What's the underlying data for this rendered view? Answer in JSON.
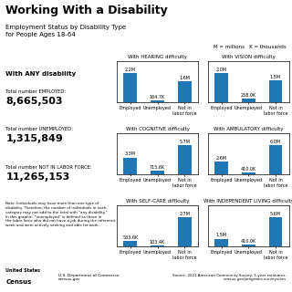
{
  "title": "Working With a Disability",
  "subtitle": "Employment Status by Disability Type\nfor People Ages 18-64",
  "annotations": [
    "With ANY disability",
    "Total number EMPLOYED:",
    "8,665,503",
    "Total number UNEMPLOYED:",
    "1,315,849",
    "Total number NOT IN LABOR FORCE:",
    "11,265,153",
    "Note: Individuals may have more than one type of\ndisability. Therefore, the number of individuals in each\ncategory may not add to the total with \"any disability.\"\nIn this graphic, \"unemployed\" is defined as those in\nthe labor force who did not have a job during the reference\nweek and were actively seeking and able for work.",
    "M = millions   K = thousands",
    "United States",
    "Census",
    "U.S. Department of Commerce\ncensus.gov",
    "Source: 2021 American Community Survey, 1-year estimates.\ncensus.gov/programs-surveys/acs"
  ],
  "chart_data": [
    {
      "type": "bar",
      "title": "With HEARING difficulty",
      "categories": [
        "Employed",
        "Unemployed",
        "Not in\nlabor force"
      ],
      "values": [
        2.2,
        0.1647,
        1.6
      ],
      "value_labels": [
        "2.2M",
        "164.7K",
        "1.6M"
      ],
      "ylim": [
        0,
        3.08
      ],
      "data_labels": true,
      "tick_labels": "x",
      "grid": false
    },
    {
      "type": "bar",
      "title": "With VISION difficulty",
      "categories": [
        "Employed",
        "Unemployed",
        "Not in\nlabor force"
      ],
      "values": [
        2.0,
        0.258,
        1.5
      ],
      "value_labels": [
        "2.0M",
        "258.0K",
        "1.5M"
      ],
      "ylim": [
        0,
        2.8
      ],
      "data_labels": true,
      "tick_labels": "x",
      "grid": false
    },
    {
      "type": "bar",
      "title": "With COGNITIVE difficulty",
      "categories": [
        "Employed",
        "Unemployed",
        "Not in\nlabor force"
      ],
      "values": [
        3.3,
        0.7156,
        5.7
      ],
      "value_labels": [
        "3.3M",
        "715.6K",
        "5.7M"
      ],
      "ylim": [
        0,
        7.98
      ],
      "data_labels": true,
      "tick_labels": "x",
      "grid": false
    },
    {
      "type": "bar",
      "title": "With AMBULATORY difficulty",
      "categories": [
        "Employed",
        "Unemployed",
        "Not in\nlabor force"
      ],
      "values": [
        2.6,
        0.41,
        6.0
      ],
      "value_labels": [
        "2.6M",
        "410.0K",
        "6.0M"
      ],
      "ylim": [
        0,
        8.4
      ],
      "data_labels": true,
      "tick_labels": "x",
      "grid": false
    },
    {
      "type": "bar",
      "title": "With SELF-CARE difficulty",
      "categories": [
        "Employed",
        "Unemployed",
        "Not in\nlabor force"
      ],
      "values": [
        0.5336,
        0.1034,
        2.7
      ],
      "value_labels": [
        "533.6K",
        "103.4K",
        "2.7M"
      ],
      "ylim": [
        0,
        3.78
      ],
      "data_labels": true,
      "tick_labels": "x",
      "grid": false
    },
    {
      "type": "bar",
      "title": "With INDEPENDENT LIVING difficulty",
      "categories": [
        "Employed",
        "Unemployed",
        "Not in\nlabor force"
      ],
      "values": [
        1.5,
        0.41,
        5.6
      ],
      "value_labels": [
        "1.5M",
        "410.0K",
        "5.6M"
      ],
      "ylim": [
        0,
        7.84
      ],
      "data_labels": true,
      "tick_labels": "x",
      "grid": false
    }
  ]
}
